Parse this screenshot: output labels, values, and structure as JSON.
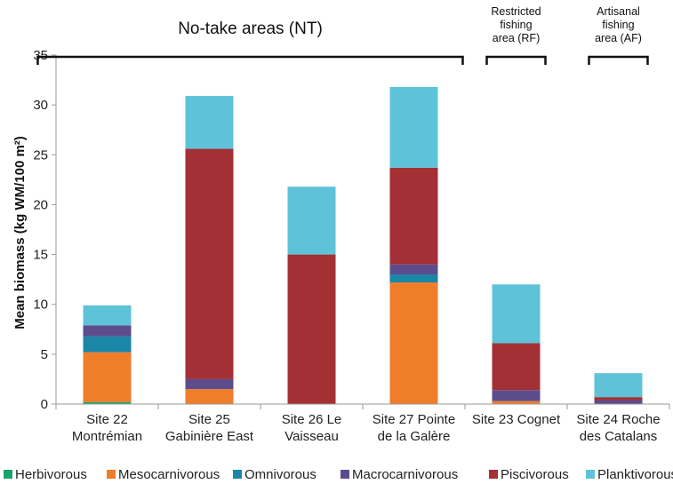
{
  "chart_data": {
    "type": "bar",
    "stacked": true,
    "ylabel": "Mean biomass (kg WM/100 m²)",
    "ylim": [
      0,
      35
    ],
    "yticks": [
      0,
      5,
      10,
      15,
      20,
      25,
      30,
      35
    ],
    "categories": [
      [
        "Site 22",
        "Montrémian"
      ],
      [
        "Site 25",
        "Gabinière East"
      ],
      [
        "Site 26 Le",
        "Vaisseau"
      ],
      [
        "Site 27 Pointe",
        "de la Galère"
      ],
      [
        "Site 23 Cognet"
      ],
      [
        "Site 24 Roche",
        "des Catalans"
      ]
    ],
    "series": [
      {
        "name": "Herbivorous",
        "color": "#17a46b",
        "values": [
          0.2,
          0.0,
          0.0,
          0.0,
          0.0,
          0.0
        ]
      },
      {
        "name": "Mesocarnivorous",
        "color": "#f07d2a",
        "values": [
          5.0,
          1.5,
          0.0,
          12.2,
          0.3,
          0.0
        ]
      },
      {
        "name": "Omnivorous",
        "color": "#1a86a8",
        "values": [
          1.6,
          0.0,
          0.0,
          0.8,
          0.0,
          0.0
        ]
      },
      {
        "name": "Macrocarnivorous",
        "color": "#5c4c8c",
        "values": [
          1.1,
          1.0,
          0.0,
          1.0,
          1.1,
          0.4
        ]
      },
      {
        "name": "Piscivorous",
        "color": "#a33035",
        "values": [
          0.0,
          23.1,
          15.0,
          9.7,
          4.7,
          0.3
        ]
      },
      {
        "name": "Planktivorous",
        "color": "#5ec3d8",
        "values": [
          2.0,
          5.3,
          6.8,
          8.1,
          5.9,
          2.4
        ]
      }
    ],
    "groups": [
      {
        "lines": [
          "No-take areas (NT)"
        ],
        "from": 0,
        "to": 3
      },
      {
        "lines": [
          "Restricted",
          "fishing",
          "area (RF)"
        ],
        "from": 4,
        "to": 4
      },
      {
        "lines": [
          "Artisanal",
          "fishing",
          "area (AF)"
        ],
        "from": 5,
        "to": 5
      }
    ],
    "legend_position": "bottom",
    "grid": false
  }
}
